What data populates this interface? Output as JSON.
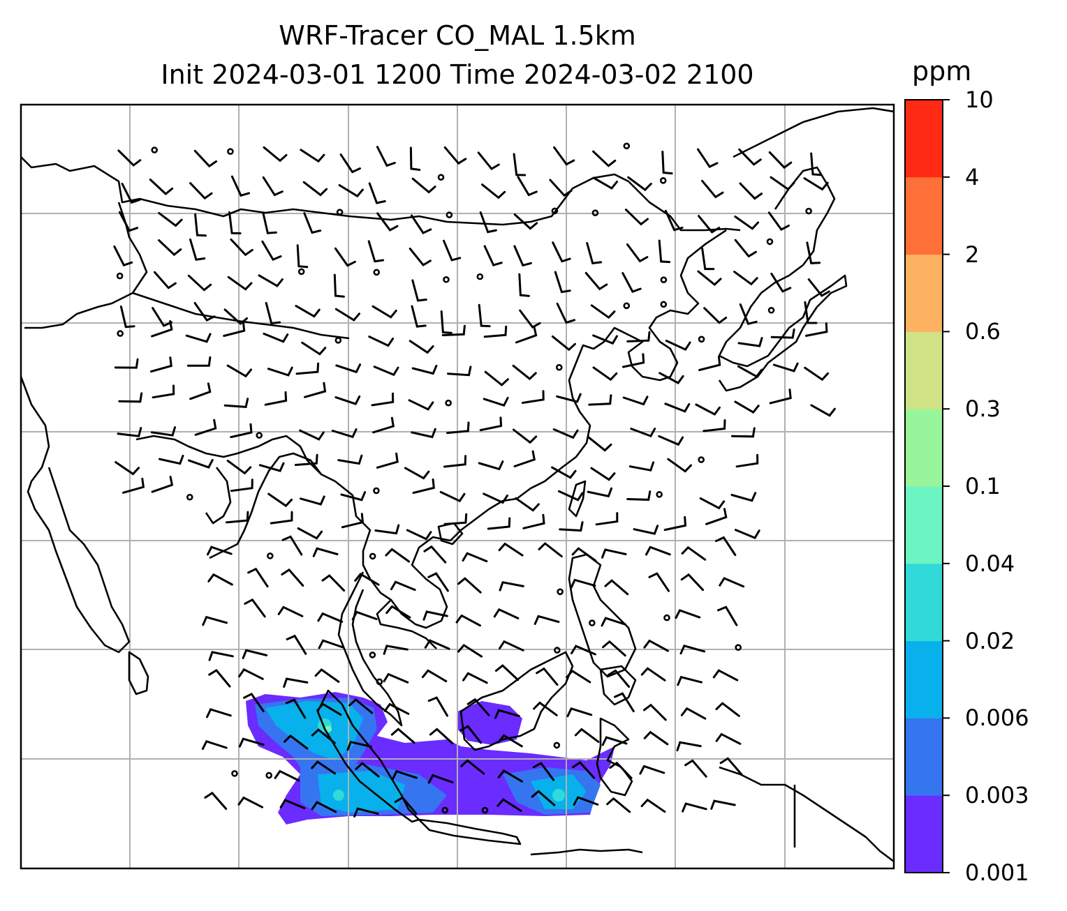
{
  "title": {
    "line1": "WRF-Tracer CO_MAL 1.5km",
    "line2": "Init 2024-03-01 1200 Time 2024-03-02 2100"
  },
  "colorbar": {
    "unit": "ppm",
    "levels": [
      "0.001",
      "0.003",
      "0.006",
      "0.02",
      "0.04",
      "0.1",
      "0.3",
      "0.6",
      "2",
      "4",
      "10"
    ],
    "colors": [
      "#6a2cff",
      "#3575f0",
      "#08b1eb",
      "#31d9d9",
      "#6cf4c3",
      "#99f59b",
      "#cfe286",
      "#fcb260",
      "#ff7039",
      "#fe2a16"
    ]
  },
  "map": {
    "gridlines": true,
    "coastline_color": "#000000",
    "grid_color": "#b0b0b0",
    "tracer_region": "Indian Ocean south of Sumatra and Java",
    "wind_display": "wind barbs, calm shown as circles"
  }
}
